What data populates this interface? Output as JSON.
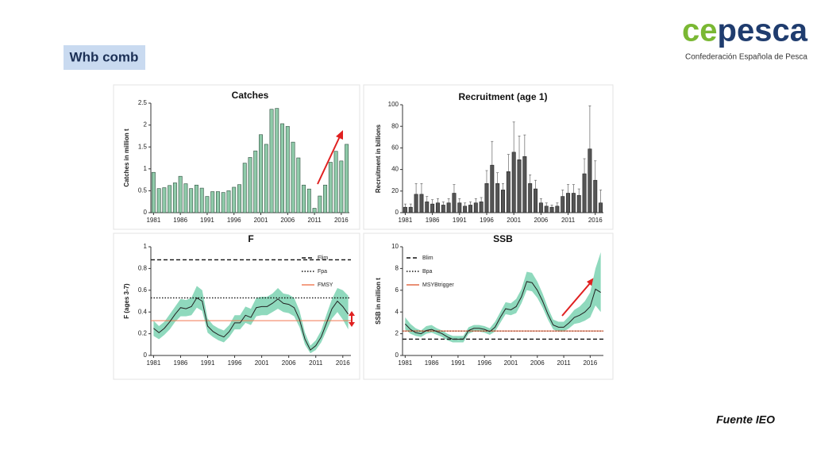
{
  "slide_title": "Whb comb",
  "logo": {
    "name": "cepesca",
    "tagline": "Confederación Española de Pesca"
  },
  "source": "Fuente IEO",
  "chart_data": [
    {
      "type": "bar",
      "title": "Catches",
      "y_label": "Catches in million t",
      "color": "#8fcaa9",
      "edge_color": "#2f4f3f",
      "x": [
        1981,
        1982,
        1983,
        1984,
        1985,
        1986,
        1987,
        1988,
        1989,
        1990,
        1991,
        1992,
        1993,
        1994,
        1995,
        1996,
        1997,
        1998,
        1999,
        2000,
        2001,
        2002,
        2003,
        2004,
        2005,
        2006,
        2007,
        2008,
        2009,
        2010,
        2011,
        2012,
        2013,
        2014,
        2015,
        2016,
        2017
      ],
      "values": [
        0.92,
        0.55,
        0.57,
        0.62,
        0.68,
        0.83,
        0.66,
        0.55,
        0.63,
        0.56,
        0.37,
        0.48,
        0.48,
        0.46,
        0.5,
        0.58,
        0.64,
        1.13,
        1.26,
        1.41,
        1.78,
        1.56,
        2.36,
        2.38,
        2.03,
        1.97,
        1.61,
        1.25,
        0.63,
        0.54,
        0.1,
        0.38,
        0.63,
        1.15,
        1.4,
        1.18,
        1.56
      ],
      "xlim": [
        1980.5,
        2017.5
      ],
      "xticks": [
        1981,
        1986,
        1991,
        1996,
        2001,
        2006,
        2011,
        2016
      ],
      "ylim": [
        0,
        2.5
      ],
      "yticks": [
        0,
        0.5,
        1,
        1.5,
        2,
        2.5
      ]
    },
    {
      "type": "bar",
      "title": "Recruitment (age 1)",
      "y_label": "Recruitment in billions",
      "color": "#555555",
      "edge_color": "#222222",
      "x": [
        1981,
        1982,
        1983,
        1984,
        1985,
        1986,
        1987,
        1988,
        1989,
        1990,
        1991,
        1992,
        1993,
        1994,
        1995,
        1996,
        1997,
        1998,
        1999,
        2000,
        2001,
        2002,
        2003,
        2004,
        2005,
        2006,
        2007,
        2008,
        2009,
        2010,
        2011,
        2012,
        2013,
        2014,
        2015,
        2016,
        2017
      ],
      "values": [
        5,
        5,
        17,
        17,
        10,
        8,
        9,
        7,
        9,
        18,
        9,
        6,
        7,
        9,
        10,
        27,
        44,
        27,
        21,
        38,
        56,
        49,
        52,
        27,
        22,
        9,
        6,
        5,
        6,
        15,
        18,
        18,
        16,
        36,
        59,
        30,
        9
      ],
      "errors": [
        3,
        3,
        10,
        10,
        5,
        4,
        4,
        3,
        4,
        8,
        4,
        3,
        3,
        4,
        4,
        12,
        22,
        10,
        6,
        16,
        28,
        22,
        20,
        8,
        8,
        4,
        3,
        2,
        3,
        6,
        8,
        8,
        6,
        14,
        40,
        18,
        12
      ],
      "xlim": [
        1980.5,
        2017.5
      ],
      "xticks": [
        1981,
        1986,
        1991,
        1996,
        2001,
        2006,
        2011,
        2016
      ],
      "ylim": [
        0,
        100
      ],
      "yticks": [
        0,
        20,
        40,
        60,
        80,
        100
      ]
    },
    {
      "type": "line",
      "title": "F",
      "y_label": "F (ages 3-7)",
      "color": "#222222",
      "band_color": "#8fd9bd",
      "x": [
        1981,
        1982,
        1983,
        1984,
        1985,
        1986,
        1987,
        1988,
        1989,
        1990,
        1991,
        1992,
        1993,
        1994,
        1995,
        1996,
        1997,
        1998,
        1999,
        2000,
        2001,
        2002,
        2003,
        2004,
        2005,
        2006,
        2007,
        2008,
        2009,
        2010,
        2011,
        2012,
        2013,
        2014,
        2015,
        2016,
        2017
      ],
      "values": [
        0.25,
        0.21,
        0.25,
        0.31,
        0.38,
        0.44,
        0.43,
        0.45,
        0.53,
        0.5,
        0.27,
        0.22,
        0.19,
        0.17,
        0.22,
        0.3,
        0.3,
        0.37,
        0.35,
        0.44,
        0.45,
        0.45,
        0.48,
        0.52,
        0.48,
        0.47,
        0.44,
        0.33,
        0.15,
        0.05,
        0.09,
        0.17,
        0.3,
        0.43,
        0.5,
        0.45,
        0.38
      ],
      "lower": [
        0.18,
        0.15,
        0.19,
        0.24,
        0.31,
        0.36,
        0.36,
        0.37,
        0.44,
        0.41,
        0.21,
        0.17,
        0.14,
        0.12,
        0.17,
        0.24,
        0.24,
        0.3,
        0.28,
        0.36,
        0.37,
        0.37,
        0.4,
        0.43,
        0.4,
        0.39,
        0.36,
        0.26,
        0.1,
        0.02,
        0.05,
        0.12,
        0.23,
        0.34,
        0.4,
        0.33,
        0.24
      ],
      "upper": [
        0.32,
        0.27,
        0.31,
        0.38,
        0.45,
        0.52,
        0.51,
        0.53,
        0.64,
        0.6,
        0.34,
        0.28,
        0.25,
        0.23,
        0.28,
        0.37,
        0.37,
        0.45,
        0.43,
        0.53,
        0.54,
        0.54,
        0.57,
        0.62,
        0.57,
        0.56,
        0.53,
        0.41,
        0.21,
        0.09,
        0.14,
        0.23,
        0.38,
        0.52,
        0.62,
        0.6,
        0.55
      ],
      "ref_lines": [
        {
          "name": "Flim",
          "value": 0.88,
          "style": "dashed",
          "color": "#111111"
        },
        {
          "name": "Fpa",
          "value": 0.53,
          "style": "dotted",
          "color": "#111111"
        },
        {
          "name": "FMSY",
          "value": 0.32,
          "style": "solid",
          "color": "#f07850"
        }
      ],
      "legend": "top-right",
      "xlim": [
        1980.5,
        2017.5
      ],
      "xticks": [
        1981,
        1986,
        1991,
        1996,
        2001,
        2006,
        2011,
        2016
      ],
      "ylim": [
        0,
        1
      ],
      "yticks": [
        0,
        0.2,
        0.4,
        0.6,
        0.8,
        1
      ]
    },
    {
      "type": "line",
      "title": "SSB",
      "y_label": "SSB in million t",
      "color": "#222222",
      "band_color": "#8fd9bd",
      "x": [
        1981,
        1982,
        1983,
        1984,
        1985,
        1986,
        1987,
        1988,
        1989,
        1990,
        1991,
        1992,
        1993,
        1994,
        1995,
        1996,
        1997,
        1998,
        1999,
        2000,
        2001,
        2002,
        2003,
        2004,
        2005,
        2006,
        2007,
        2008,
        2009,
        2010,
        2011,
        2012,
        2013,
        2014,
        2015,
        2016,
        2017,
        2018
      ],
      "values": [
        2.9,
        2.4,
        2.1,
        2.0,
        2.3,
        2.4,
        2.2,
        2.0,
        1.7,
        1.5,
        1.5,
        1.5,
        2.3,
        2.5,
        2.5,
        2.4,
        2.2,
        2.6,
        3.5,
        4.3,
        4.2,
        4.5,
        5.4,
        6.8,
        6.7,
        6.0,
        5.0,
        3.8,
        2.8,
        2.6,
        2.6,
        3.0,
        3.5,
        3.7,
        4.0,
        4.5,
        6.1,
        5.8
      ],
      "lower": [
        2.4,
        2.0,
        1.8,
        1.7,
        2.0,
        2.1,
        1.9,
        1.7,
        1.4,
        1.2,
        1.2,
        1.2,
        2.0,
        2.2,
        2.2,
        2.1,
        1.9,
        2.2,
        3.0,
        3.8,
        3.7,
        3.9,
        4.8,
        6.0,
        5.9,
        5.3,
        4.4,
        3.3,
        2.4,
        2.2,
        2.2,
        2.5,
        2.9,
        3.0,
        3.2,
        3.5,
        4.6,
        4.0
      ],
      "upper": [
        3.5,
        2.9,
        2.5,
        2.3,
        2.7,
        2.8,
        2.5,
        2.3,
        2.0,
        1.8,
        1.8,
        1.8,
        2.6,
        2.8,
        2.8,
        2.7,
        2.5,
        3.1,
        4.0,
        4.9,
        4.8,
        5.2,
        6.1,
        7.7,
        7.6,
        6.8,
        5.7,
        4.4,
        3.3,
        3.1,
        3.1,
        3.6,
        4.2,
        4.5,
        5.0,
        5.8,
        8.0,
        9.5
      ],
      "ref_lines": [
        {
          "name": "Blim",
          "value": 1.5,
          "style": "dashed",
          "color": "#111111"
        },
        {
          "name": "Bpa",
          "value": 2.25,
          "style": "dotted",
          "color": "#111111"
        },
        {
          "name": "MSYBtrigger",
          "value": 2.25,
          "style": "solid",
          "color": "#e0603a"
        }
      ],
      "legend": "top-left",
      "xlim": [
        1980.5,
        2018.5
      ],
      "xticks": [
        1981,
        1986,
        1991,
        1996,
        2001,
        2006,
        2011,
        2016
      ],
      "ylim": [
        0,
        10
      ],
      "yticks": [
        0,
        2,
        4,
        6,
        8,
        10
      ]
    }
  ]
}
